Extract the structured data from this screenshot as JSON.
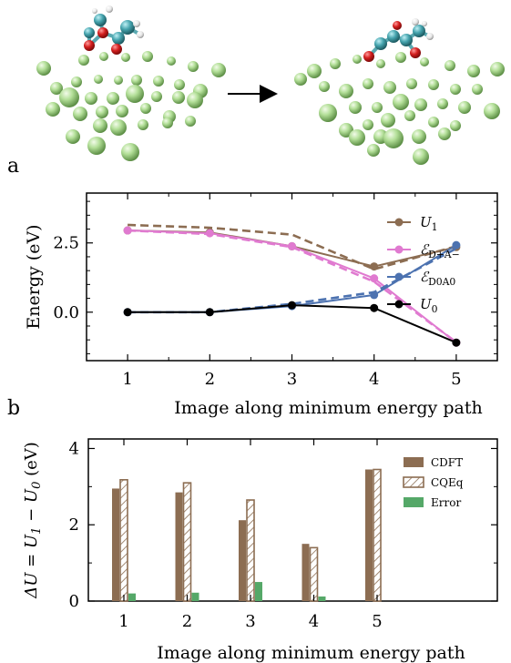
{
  "panel_labels": [
    "a",
    "b"
  ],
  "colors": {
    "U1": "#8c6d52",
    "DA": "#e07ad0",
    "D0A0": "#4c72b0",
    "U0": "#000000",
    "CDFT": "#8c6d52",
    "CQEq": "#8c6d52",
    "Error": "#55a868",
    "atom_green": "#a9d88f",
    "atom_red": "#d41f1f",
    "atom_teal": "#45a3ad",
    "atom_white": "#e6e6e6"
  },
  "chart_data": [
    {
      "type": "line",
      "x": [
        1,
        2,
        3,
        4,
        5
      ],
      "xlabel": "Image along minimum energy path",
      "ylabel": "Energy (eV)",
      "xlim": [
        0.5,
        5.5
      ],
      "ylim": [
        -1.75,
        4.3
      ],
      "xticks": [
        "1",
        "2",
        "3",
        "4",
        "5"
      ],
      "yticks": [
        {
          "value": 0,
          "label": "0.0"
        },
        {
          "value": 2.5,
          "label": "2.5"
        }
      ],
      "legend_position": "right",
      "series": [
        {
          "key": "U1",
          "name": "U_1",
          "solid": [
            2.95,
            2.88,
            2.38,
            1.65,
            2.35
          ],
          "dashed": [
            3.15,
            3.05,
            2.8,
            1.55,
            2.38
          ]
        },
        {
          "key": "DA",
          "name": "ℰ_{D+A−}",
          "solid": [
            2.95,
            2.85,
            2.38,
            1.22,
            -1.1
          ],
          "dashed": [
            2.95,
            2.82,
            2.35,
            1.1,
            -1.08
          ]
        },
        {
          "key": "D0A0",
          "name": "ℰ_{D0A0}",
          "solid": [
            0.0,
            0.0,
            0.22,
            0.62,
            2.42
          ],
          "dashed": [
            0.0,
            0.0,
            0.3,
            0.72,
            2.3
          ]
        },
        {
          "key": "U0",
          "name": "U_0",
          "solid": [
            0.0,
            0.0,
            0.25,
            0.15,
            -1.1
          ],
          "dashed": null
        }
      ]
    },
    {
      "type": "bar",
      "categories": [
        "1",
        "2",
        "3",
        "4",
        "5"
      ],
      "xlabel": "Image along minimum energy path",
      "ylabel": "ΔU = U_1 − U_0 (eV)",
      "ylim": [
        0,
        4.25
      ],
      "yticks": [
        "0",
        "2",
        "4"
      ],
      "legend_position": "top-right",
      "series": [
        {
          "key": "CDFT",
          "name": "CDFT",
          "values": [
            2.95,
            2.85,
            2.12,
            1.5,
            3.45
          ]
        },
        {
          "key": "CQEq",
          "name": "CQEq",
          "values": [
            3.18,
            3.1,
            2.65,
            1.4,
            3.45
          ]
        },
        {
          "key": "Error",
          "name": "Error",
          "values": [
            0.2,
            0.22,
            0.5,
            0.12,
            0.0
          ]
        }
      ]
    }
  ]
}
